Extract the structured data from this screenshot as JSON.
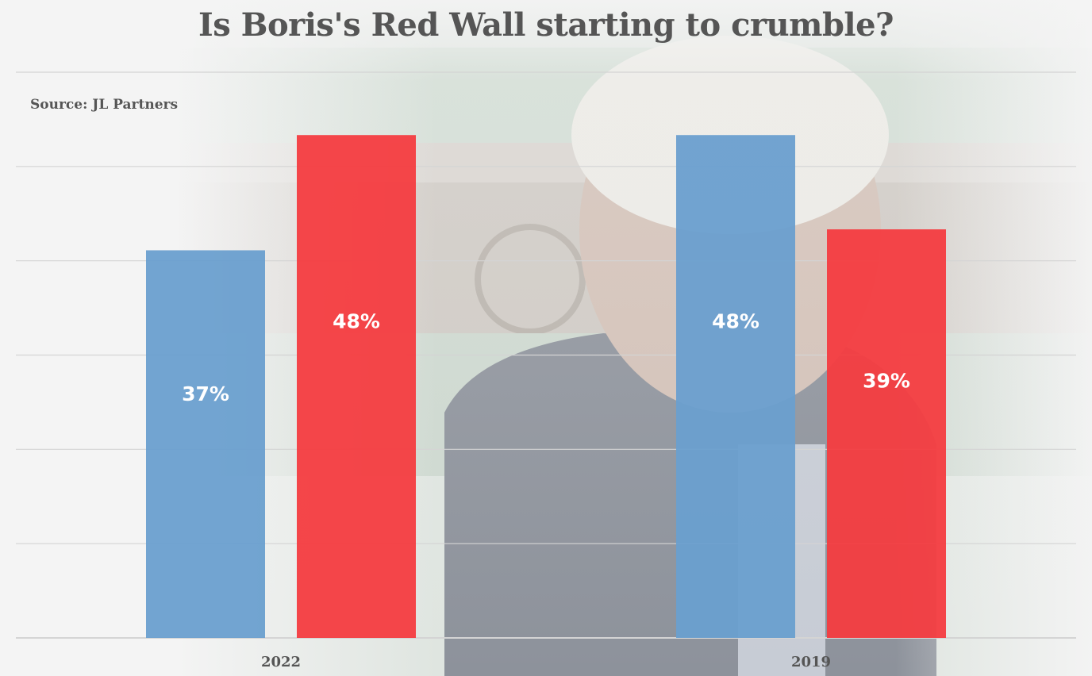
{
  "chart_data": {
    "type": "bar",
    "title": "Is Boris's Red Wall starting to crumble?",
    "source": "Source: JL Partners",
    "categories": [
      "2022",
      "2019"
    ],
    "series": [
      {
        "values": [
          37,
          48
        ],
        "labels": [
          "37%",
          "48%"
        ],
        "color": "#6a9fcf"
      },
      {
        "values": [
          48,
          39
        ],
        "labels": [
          "48%",
          "39%"
        ],
        "color": "#f43c40"
      }
    ],
    "ylim": [
      0,
      54
    ],
    "grid": true,
    "legend": "none"
  },
  "colors": {
    "text": "#555555",
    "gridline": "#d4d4d4",
    "background": "#f4f4f4"
  }
}
